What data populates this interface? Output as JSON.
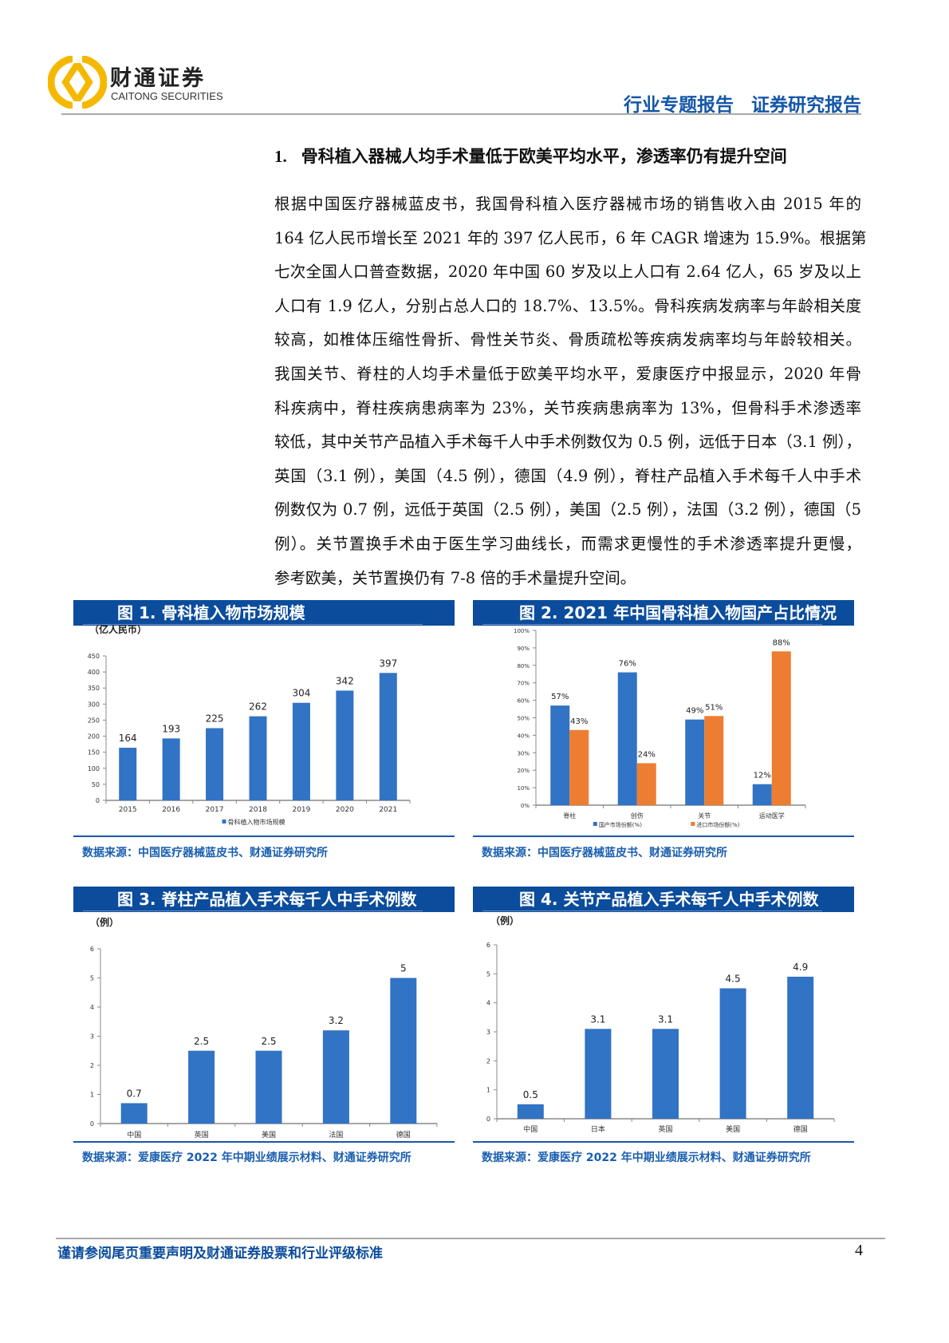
{
  "header": {
    "brand_cn": "财通证券",
    "brand_en": "CAITONG SECURITIES",
    "report_type": "行业专题报告",
    "report_category": "证券研究报告",
    "logo_color": "#f5b800",
    "accent": "#1456a8"
  },
  "section": {
    "number": "1.",
    "title": "骨科植入器械人均手术量低于欧美平均水平，渗透率仍有提升空间"
  },
  "paragraph_lines": [
    "根据中国医疗器械蓝皮书，我国骨科植入医疗器械市场的销售收入由 2015 年的",
    "164 亿人民币增长至 2021 年的 397 亿人民币，6 年 CAGR 增速为 15.9%。根据第",
    "七次全国人口普查数据，2020 年中国 60 岁及以上人口有 2.64 亿人，65 岁及以上",
    "人口有 1.9 亿人，分别占总人口的 18.7%、13.5%。骨科疾病发病率与年龄相关度",
    "较高，如椎体压缩性骨折、骨性关节炎、骨质疏松等疾病发病率均与年龄较相关。",
    "我国关节、脊柱的人均手术量低于欧美平均水平，爱康医疗中报显示，2020 年骨",
    "科疾病中，脊柱疾病患病率为 23%，关节疾病患病率为 13%，但骨科手术渗透率",
    "较低，其中关节产品植入手术每千人中手术例数仅为 0.5 例，远低于日本（3.1 例），",
    "英国（3.1 例），美国（4.5 例），德国（4.9 例），脊柱产品植入手术每千人中手术",
    "例数仅为 0.7 例，远低于英国（2.5 例），美国（2.5 例），法国（3.2 例），德国（5",
    "例）。关节置换手术由于医生学习曲线长，而需求更慢性的手术渗透率提升更慢，",
    "参考欧美，关节置换仍有 7-8 倍的手术量提升空间。"
  ],
  "chart_data": [
    {
      "type": "bar",
      "title": "图 1.  骨科植入物市场规模",
      "ylabel": "（亿人民币）",
      "categories": [
        "2015",
        "2016",
        "2017",
        "2018",
        "2019",
        "2020",
        "2021"
      ],
      "series": [
        {
          "name": "骨科植入物市场规模",
          "values": [
            164,
            193,
            225,
            262,
            304,
            342,
            397
          ],
          "color": "#3173c4"
        }
      ],
      "data_labels": [
        "164",
        "193",
        "225",
        "262",
        "304",
        "342",
        "397"
      ],
      "ylim": [
        0,
        450
      ],
      "yticks": [
        "0",
        "50",
        "100",
        "150",
        "200",
        "250",
        "300",
        "350",
        "400",
        "450"
      ],
      "legend": "bottom",
      "source": "数据来源：中国医疗器械蓝皮书、财通证券研究所"
    },
    {
      "type": "bar",
      "title": "图 2.  2021 年中国骨科植入物国产占比情况",
      "ylabel": "",
      "categories": [
        "脊柱",
        "创伤",
        "关节",
        "运动医学"
      ],
      "series": [
        {
          "name": "国产市场份额(%)",
          "values": [
            57,
            76,
            49,
            12
          ],
          "labels": [
            "57%",
            "76%",
            "49%",
            "12%"
          ],
          "color": "#3173c4"
        },
        {
          "name": "进口市场份额(%)",
          "values": [
            43,
            24,
            51,
            88
          ],
          "labels": [
            "43%",
            "24%",
            "51%",
            "88%"
          ],
          "color": "#ed7d31"
        }
      ],
      "ylim": [
        0,
        100
      ],
      "yticks": [
        "0%",
        "10%",
        "20%",
        "30%",
        "40%",
        "50%",
        "60%",
        "70%",
        "80%",
        "90%",
        "100%"
      ],
      "legend": "bottom",
      "source": "数据来源：中国医疗器械蓝皮书、财通证券研究所"
    },
    {
      "type": "bar",
      "title": "图 3.  脊柱产品植入手术每千人中手术例数",
      "ylabel": "（例）",
      "categories": [
        "中国",
        "英国",
        "美国",
        "法国",
        "德国"
      ],
      "series": [
        {
          "name": "",
          "values": [
            0.7,
            2.5,
            2.5,
            3.2,
            5
          ],
          "color": "#3173c4"
        }
      ],
      "data_labels": [
        "0.7",
        "2.5",
        "2.5",
        "3.2",
        "5"
      ],
      "ylim": [
        0,
        6
      ],
      "yticks": [
        "0",
        "1",
        "2",
        "3",
        "4",
        "5",
        "6"
      ],
      "source": "数据来源：爱康医疗 2022 年中期业绩展示材料、财通证券研究所"
    },
    {
      "type": "bar",
      "title": "图 4.  关节产品植入手术每千人中手术例数",
      "ylabel": "（例）",
      "categories": [
        "中国",
        "日本",
        "英国",
        "美国",
        "德国"
      ],
      "series": [
        {
          "name": "",
          "values": [
            0.5,
            3.1,
            3.1,
            4.5,
            4.9
          ],
          "color": "#3173c4"
        }
      ],
      "data_labels": [
        "0.5",
        "3.1",
        "3.1",
        "4.5",
        "4.9"
      ],
      "ylim": [
        0,
        6
      ],
      "yticks": [
        "0",
        "1",
        "2",
        "3",
        "4",
        "5",
        "6"
      ],
      "source": "数据来源：爱康医疗 2022 年中期业绩展示材料、财通证券研究所"
    }
  ],
  "footer": {
    "disclaimer": "谨请参阅尾页重要声明及财通证券股票和行业评级标准",
    "page_number": "4"
  }
}
